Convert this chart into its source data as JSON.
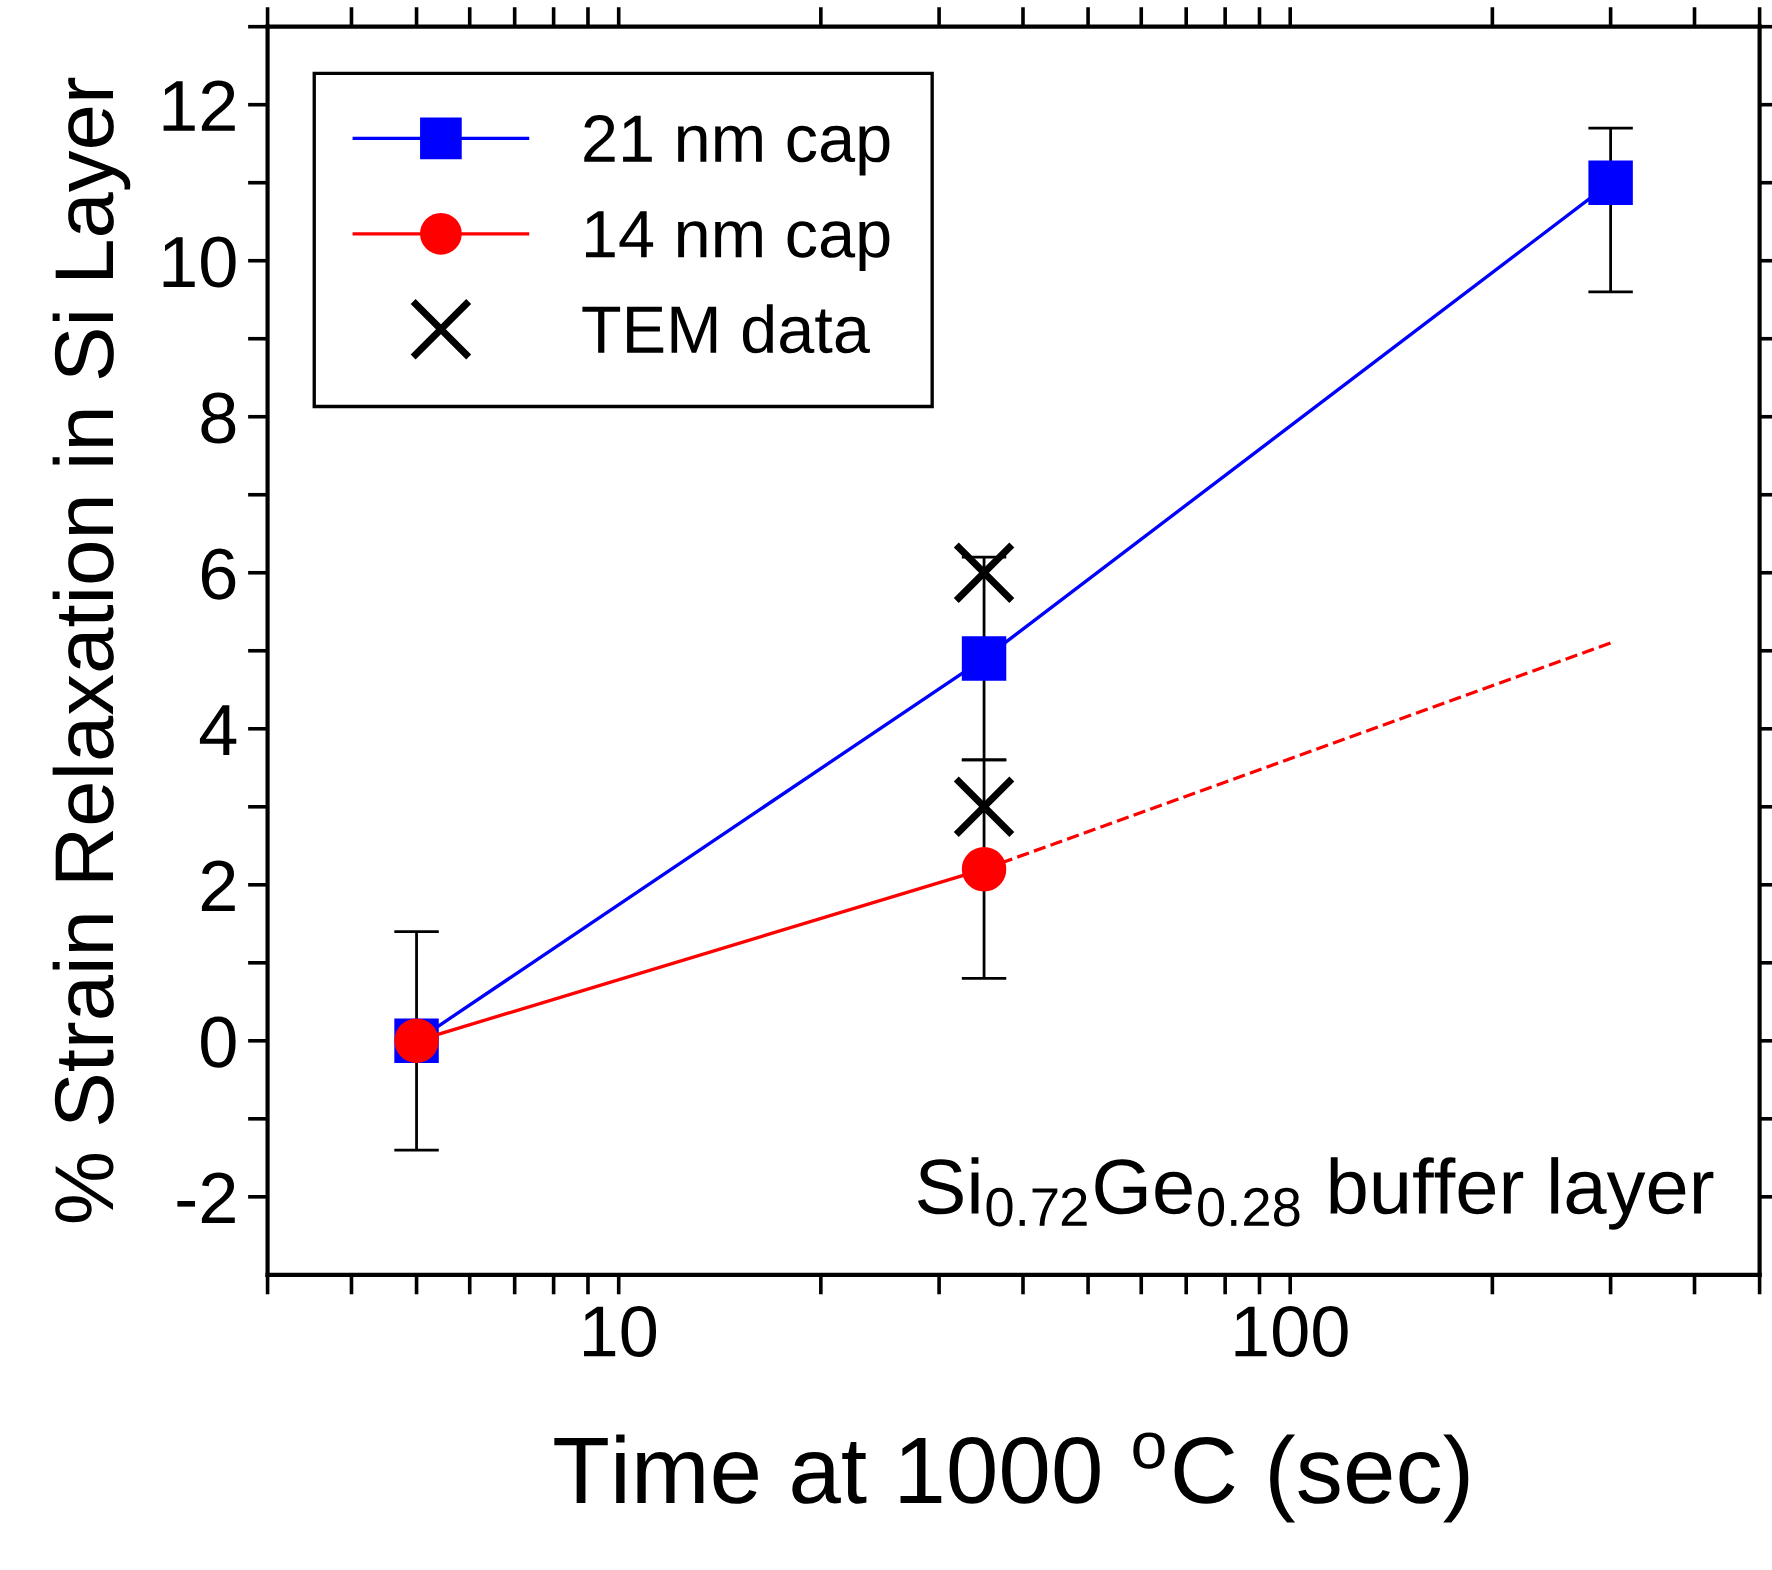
{
  "chart_data": {
    "type": "line",
    "xlabel": "Time at 1000 $^{o}$C (sec)",
    "ylabel": "% Strain Relaxation in Si Layer",
    "log": "x",
    "xlim": [
      3,
      500
    ],
    "ylim": [
      -3,
      13
    ],
    "xticks": [
      {
        "value": 3,
        "label": null
      },
      {
        "value": 4,
        "label": null
      },
      {
        "value": 5,
        "label": null
      },
      {
        "value": 6,
        "label": null
      },
      {
        "value": 7,
        "label": null
      },
      {
        "value": 8,
        "label": null
      },
      {
        "value": 9,
        "label": null
      },
      10,
      {
        "value": 20,
        "label": null
      },
      {
        "value": 30,
        "label": null
      },
      {
        "value": 40,
        "label": null
      },
      {
        "value": 50,
        "label": null
      },
      {
        "value": 60,
        "label": null
      },
      {
        "value": 70,
        "label": null
      },
      {
        "value": 80,
        "label": null
      },
      {
        "value": 90,
        "label": null
      },
      100,
      {
        "value": 200,
        "label": null
      },
      {
        "value": 300,
        "label": null
      },
      {
        "value": 400,
        "label": null
      },
      {
        "value": 500,
        "label": null
      }
    ],
    "yticks": [
      -2,
      {
        "value": -1,
        "label": null
      },
      0,
      {
        "value": 1,
        "label": null
      },
      2,
      {
        "value": 3,
        "label": null
      },
      4,
      {
        "value": 5,
        "label": null
      },
      6,
      {
        "value": 7,
        "label": null
      },
      8,
      {
        "value": 9,
        "label": null
      },
      10,
      {
        "value": 11,
        "label": null
      },
      12,
      {
        "value": 13,
        "label": null
      }
    ],
    "series": [
      {
        "name": "21 nm cap",
        "color": "#0000ff",
        "marker": "square",
        "line_style": "solid",
        "x": [
          5,
          35,
          300
        ],
        "values": [
          0,
          4.9,
          11
        ],
        "errors": [
          1.4,
          [
            3.6,
            6.2
          ],
          [
            9.6,
            11.7
          ]
        ]
      },
      {
        "name": "14 nm cap",
        "color": "#ff0000",
        "marker": "circle",
        "line_style": "solid",
        "x": [
          5,
          35
        ],
        "values": [
          0,
          2.2
        ],
        "errors": [
          null,
          [
            0.8,
            3.6
          ]
        ]
      },
      {
        "color": "#ff0000",
        "marker": "none",
        "line_style": "dashed",
        "x": [
          35,
          300
        ],
        "values": [
          2.2,
          5.1
        ]
      },
      {
        "name": "TEM data",
        "type": "scatter",
        "color": "#000000",
        "marker": "cross",
        "x": [
          35,
          35
        ],
        "values": [
          6,
          3
        ]
      }
    ],
    "annotations": [
      "Si$_{0.72}$Ge$_{0.28}$ buffer layer"
    ],
    "legend": "top left",
    "grid": false
  }
}
